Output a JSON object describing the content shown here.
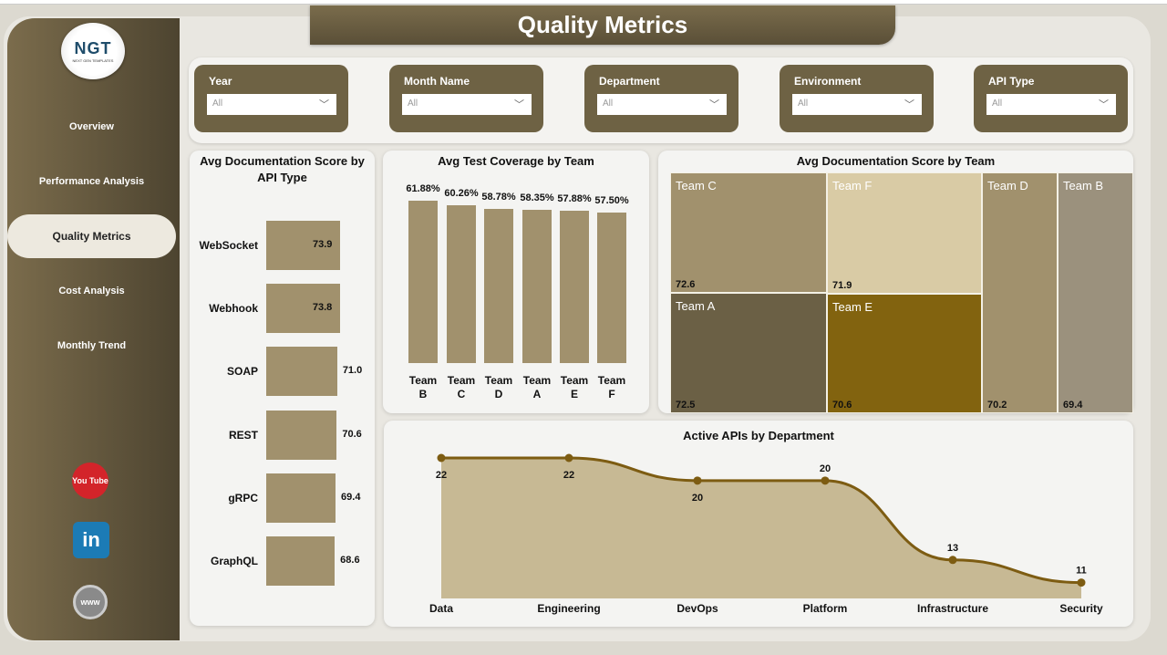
{
  "app": {
    "title": "Quality Metrics",
    "logo_text": "NGT",
    "logo_sub": "NEXT GEN TEMPLATES"
  },
  "sidebar": {
    "items": [
      {
        "label": "Overview"
      },
      {
        "label": "Performance Analysis"
      },
      {
        "label": "Quality Metrics",
        "active": true
      },
      {
        "label": "Cost Analysis"
      },
      {
        "label": "Monthly Trend"
      }
    ],
    "social": [
      {
        "icon": "youtube-icon",
        "label": "You Tube",
        "color": "#d3242a"
      },
      {
        "icon": "linkedin-icon",
        "label": "in",
        "color": "#1c7bb5"
      },
      {
        "icon": "globe-icon",
        "label": "www",
        "color": "#8a8a8a"
      }
    ]
  },
  "filters": [
    {
      "label": "Year",
      "value": "All"
    },
    {
      "label": "Month Name",
      "value": "All"
    },
    {
      "label": "Department",
      "value": "All"
    },
    {
      "label": "Environment",
      "value": "All"
    },
    {
      "label": "API Type",
      "value": "All"
    }
  ],
  "colors": {
    "accent": "#6e6244",
    "bar": "#a1916d",
    "line": "#7d5c12",
    "area": "#c7b994"
  },
  "chart_data": [
    {
      "type": "bar",
      "orientation": "horizontal",
      "title": "Avg Documentation Score by API Type",
      "categories": [
        "WebSocket",
        "Webhook",
        "SOAP",
        "REST",
        "gRPC",
        "GraphQL"
      ],
      "values": [
        73.9,
        73.8,
        71.0,
        70.6,
        69.4,
        68.6
      ],
      "labels": [
        "73.9",
        "73.8",
        "71.0",
        "70.6",
        "69.4",
        "68.6"
      ]
    },
    {
      "type": "bar",
      "title": "Avg Test Coverage by Team",
      "categories": [
        [
          "Team",
          "B"
        ],
        [
          "Team",
          "C"
        ],
        [
          "Team",
          "D"
        ],
        [
          "Team",
          "A"
        ],
        [
          "Team",
          "E"
        ],
        [
          "Team",
          "F"
        ]
      ],
      "values": [
        61.88,
        60.26,
        58.78,
        58.35,
        57.88,
        57.5
      ],
      "labels": [
        "61.88%",
        "60.26%",
        "58.78%",
        "58.35%",
        "57.88%",
        "57.50%"
      ]
    },
    {
      "type": "treemap",
      "title": "Avg Documentation Score by Team",
      "items": [
        {
          "name": "Team C",
          "value": "72.6",
          "color": "#a1916d"
        },
        {
          "name": "Team F",
          "value": "71.9",
          "color": "#d9cba5"
        },
        {
          "name": "Team A",
          "value": "72.5",
          "color": "#6b6045"
        },
        {
          "name": "Team E",
          "value": "70.6",
          "color": "#82630f"
        },
        {
          "name": "Team D",
          "value": "70.2",
          "color": "#a1916d"
        },
        {
          "name": "Team B",
          "value": "69.4",
          "color": "#9b917d"
        }
      ]
    },
    {
      "type": "area",
      "title": "Active APIs by Department",
      "categories": [
        "Data",
        "Engineering",
        "DevOps",
        "Platform",
        "Infrastructure",
        "Security"
      ],
      "values": [
        22,
        22,
        20,
        20,
        13,
        11
      ],
      "labels": [
        "22",
        "22",
        "20",
        "20",
        "13",
        "11"
      ],
      "ylim": [
        9.6,
        22
      ]
    }
  ]
}
